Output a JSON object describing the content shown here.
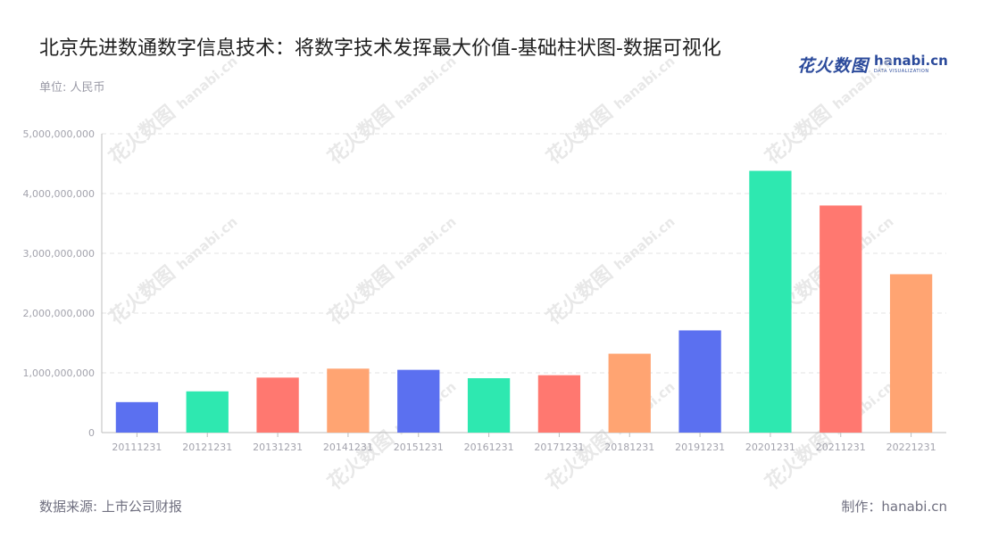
{
  "title": "北京先进数通数字信息技术：将数字技术发挥最大价值-基础柱状图-数据可视化",
  "unit": "单位: 人民币",
  "logo": {
    "cn": "花火数图",
    "en": "hanabi.cn",
    "sub": "DATA VISUALIZATION"
  },
  "watermark": {
    "cn": "花火数图",
    "en": "hanabi.cn"
  },
  "source": "数据来源: 上市公司财报",
  "credit": "制作：hanabi.cn",
  "colors": {
    "palette": [
      "#5b70f0",
      "#2ee8b0",
      "#ff7870",
      "#ffa472"
    ],
    "grid": "#e3e3e3",
    "axis": "#bdbdbd"
  },
  "chart_data": {
    "type": "bar",
    "categories": [
      "20111231",
      "20121231",
      "20131231",
      "20141231",
      "20151231",
      "20161231",
      "20171231",
      "20181231",
      "20191231",
      "20201231",
      "20211231",
      "20221231"
    ],
    "values": [
      510000000,
      690000000,
      920000000,
      1070000000,
      1050000000,
      910000000,
      960000000,
      1320000000,
      1710000000,
      4380000000,
      3800000000,
      2650000000
    ],
    "ylim": [
      0,
      5000000000
    ],
    "yticks": [
      "0",
      "1,000,000,000",
      "2,000,000,000",
      "3,000,000,000",
      "4,000,000,000",
      "5,000,000,000"
    ],
    "ytick_values": [
      0,
      1000000000,
      2000000000,
      3000000000,
      4000000000,
      5000000000
    ],
    "grid": true
  }
}
